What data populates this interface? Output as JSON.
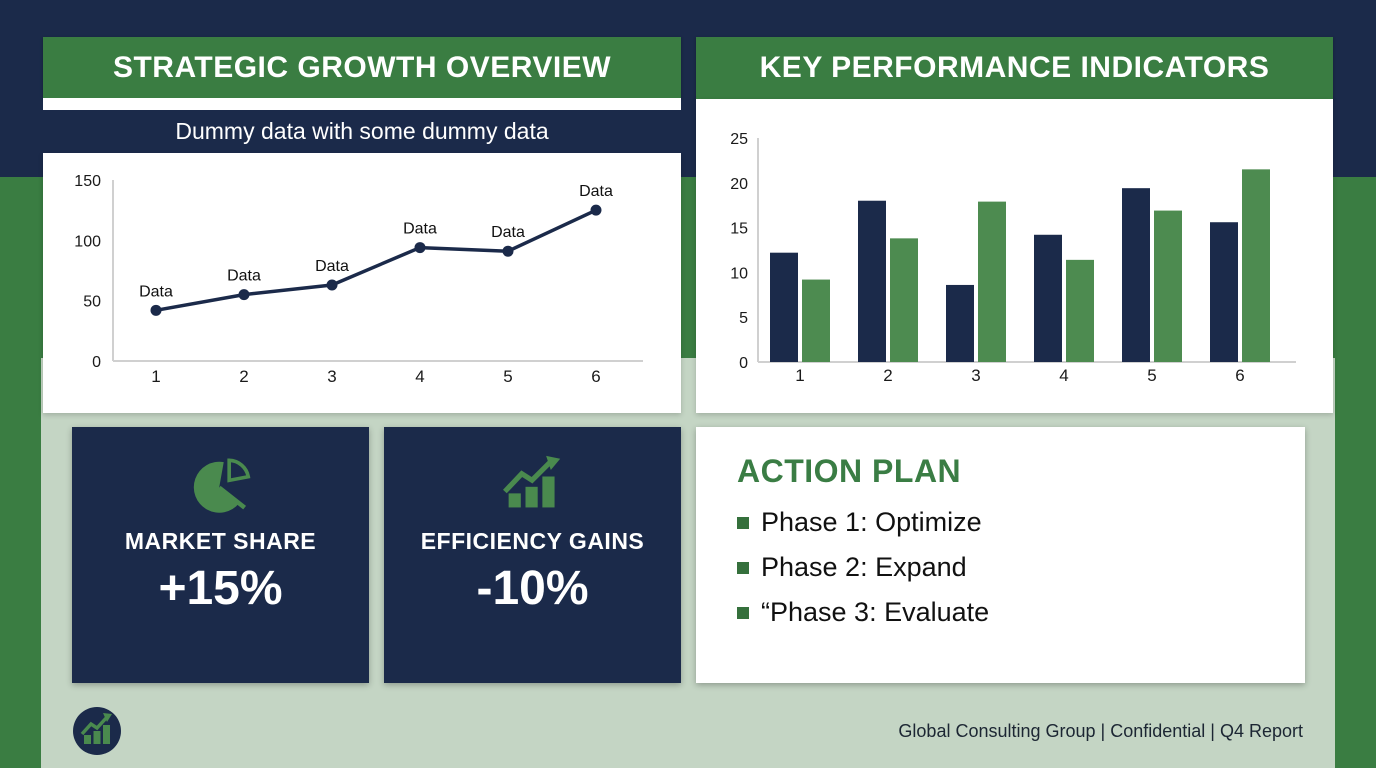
{
  "page": {
    "footer": "Global Consulting Group | Confidential | Q4 Report"
  },
  "colors": {
    "navy": "#1b2a4a",
    "green_header": "#3a7d42",
    "green_bar": "#4d8b50",
    "sage_background": "#c4d5c4",
    "white": "#ffffff",
    "text_dark": "#1a1a1a"
  },
  "left_panel": {
    "title": "STRATEGIC GROWTH OVERVIEW",
    "subtitle": "Dummy data with some dummy data"
  },
  "right_panel": {
    "title": "KEY PERFORMANCE INDICATORS"
  },
  "cards": {
    "market_share": {
      "icon": "pie-chart-icon",
      "label": "MARKET SHARE",
      "value": "+15%"
    },
    "efficiency": {
      "icon": "growth-chart-icon",
      "label": "EFFICIENCY GAINS",
      "value": "-10%"
    }
  },
  "action_plan": {
    "title": "ACTION PLAN",
    "items": [
      "Phase 1: Optimize",
      "Phase 2: Expand",
      "“Phase 3: Evaluate"
    ]
  },
  "chart_data": [
    {
      "id": "growth-line",
      "type": "line",
      "title": "STRATEGIC GROWTH OVERVIEW",
      "x": [
        1,
        2,
        3,
        4,
        5,
        6
      ],
      "values": [
        42,
        55,
        63,
        94,
        91,
        125
      ],
      "point_labels": [
        "Data",
        "Data",
        "Data",
        "Data",
        "Data",
        "Data"
      ],
      "ylim": [
        0,
        150
      ],
      "yticks": [
        0,
        50,
        100,
        150
      ],
      "grid": false,
      "legend": "none",
      "line_color": "#1b2a4a"
    },
    {
      "id": "kpi-bars",
      "type": "bar",
      "title": "KEY PERFORMANCE INDICATORS",
      "categories": [
        "1",
        "2",
        "3",
        "4",
        "5",
        "6"
      ],
      "series": [
        {
          "name": "series-navy",
          "color": "#1b2a4a",
          "values": [
            12.2,
            18,
            8.6,
            14.2,
            19.4,
            15.6
          ]
        },
        {
          "name": "series-green",
          "color": "#4d8b50",
          "values": [
            9.2,
            13.8,
            17.9,
            11.4,
            16.9,
            21.5
          ]
        }
      ],
      "ylim": [
        0,
        25
      ],
      "yticks": [
        0,
        5,
        10,
        15,
        20,
        25
      ],
      "grid": false,
      "legend": "none"
    }
  ]
}
